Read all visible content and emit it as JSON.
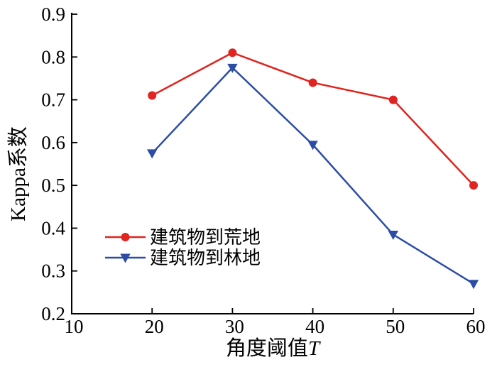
{
  "figure": {
    "background": "#ffffff",
    "axis_color": "#000000",
    "text_color": "#000000"
  },
  "chart_data": {
    "type": "line",
    "xlabel": "角度阈值T",
    "xlabel_prefix": "角度阈值",
    "xlabel_variable": "T",
    "ylabel": "Kappa系数",
    "xlim": [
      10,
      60
    ],
    "ylim": [
      0.2,
      0.9
    ],
    "x_ticks": [
      10,
      20,
      30,
      40,
      50,
      60
    ],
    "x_tick_labels": [
      "10",
      "20",
      "30",
      "40",
      "50",
      "60"
    ],
    "y_ticks": [
      0.2,
      0.3,
      0.4,
      0.5,
      0.6,
      0.7,
      0.8,
      0.9
    ],
    "y_tick_labels": [
      "0.2",
      "0.3",
      "0.4",
      "0.5",
      "0.6",
      "0.7",
      "0.8",
      "0.9"
    ],
    "grid": false,
    "legend_position": "inside-center-left",
    "x": [
      20,
      30,
      40,
      50,
      60
    ],
    "series": [
      {
        "name": "建筑物到荒地",
        "color": "#e0241f",
        "marker": "circle",
        "values": [
          0.71,
          0.81,
          0.74,
          0.7,
          0.5
        ]
      },
      {
        "name": "建筑物到林地",
        "color": "#2c4da3",
        "marker": "triangle-down",
        "values": [
          0.575,
          0.775,
          0.595,
          0.385,
          0.27
        ]
      }
    ]
  }
}
